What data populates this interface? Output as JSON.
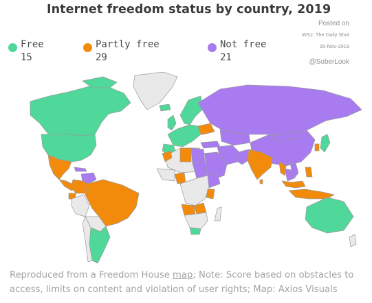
{
  "title": "Internet freedom status by country, 2019",
  "credits": {
    "posted": "Posted on",
    "source": "WSJ: The Daily Shot",
    "date": "26-Nov-2019",
    "handle": "@SoberLook"
  },
  "legend": [
    {
      "label": "Free",
      "count": "15",
      "color": "#4fd89a"
    },
    {
      "label": "Partly free",
      "count": "29",
      "color": "#f28a0c"
    },
    {
      "label": "Not free",
      "count": "21",
      "color": "#a87cf0"
    }
  ],
  "map": {
    "no_data_color": "#e9e9e9",
    "border_color": "#9a9a9a"
  },
  "footnote": {
    "prefix": "Reproduced from a Freedom House ",
    "link": "map",
    "suffix": "; Note: Score based on obstacles to access, limits on content and violation of user rights; Map: Axios Visuals"
  }
}
